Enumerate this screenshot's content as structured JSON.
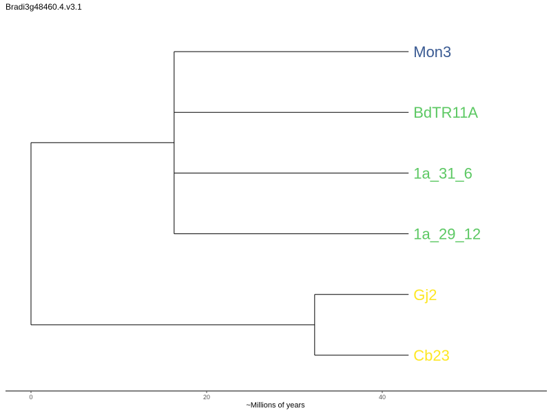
{
  "chart_data": {
    "type": "tree",
    "title": "Bradi3g48460.4.v3.1",
    "xlabel": "~Millions of years",
    "ylabel": "",
    "x_ticks": [
      0,
      20,
      40
    ],
    "xlim": [
      0,
      58
    ],
    "grid": false,
    "leaves": [
      {
        "label": "Mon3",
        "x": 43,
        "color": "#3a5a92"
      },
      {
        "label": "BdTR11A",
        "x": 43,
        "color": "#5cc863"
      },
      {
        "label": "1a_31_6",
        "x": 43,
        "color": "#5cc863"
      },
      {
        "label": "1a_29_12",
        "x": 43,
        "color": "#5cc863"
      },
      {
        "label": "Gj2",
        "x": 43,
        "color": "#fde725"
      },
      {
        "label": "Cb23",
        "x": 43,
        "color": "#fde725"
      }
    ],
    "internal_nodes": [
      {
        "x": 0,
        "children": [
          "A",
          "B"
        ]
      },
      {
        "id": "A",
        "x": 16.3,
        "children": [
          "Mon3",
          "BdTR11A",
          "1a_31_6",
          "1a_29_12"
        ]
      },
      {
        "id": "B",
        "x": 32.3,
        "children": [
          "Gj2",
          "Cb23"
        ]
      }
    ]
  }
}
